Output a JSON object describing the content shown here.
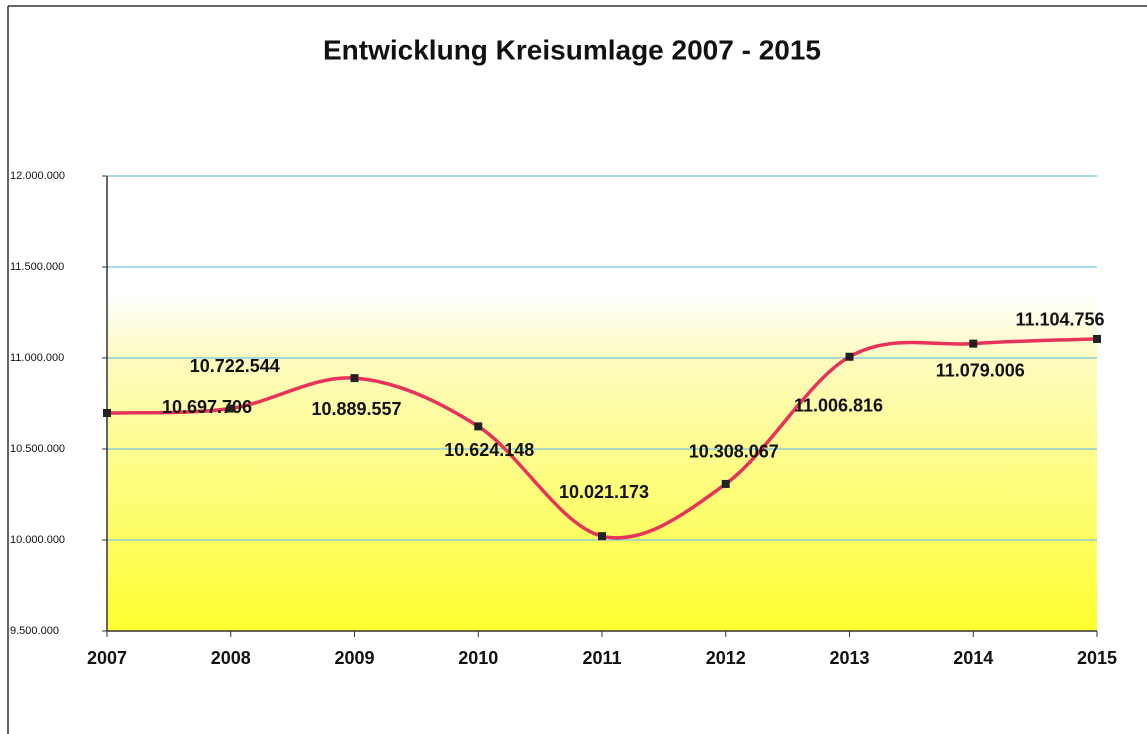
{
  "chart_data": {
    "type": "line",
    "title": "Entwicklung Kreisumlage 2007 - 2015",
    "x": [
      2007,
      2008,
      2009,
      2010,
      2011,
      2012,
      2013,
      2014,
      2015
    ],
    "xlim": [
      2007,
      2015
    ],
    "series": [
      {
        "name": "Kreisumlage",
        "color": "#e8325a",
        "values": [
          10697706,
          10722544,
          10889557,
          10624148,
          10021173,
          10308067,
          11006816,
          11079006,
          11104756
        ],
        "value_labels": [
          "10.697.706",
          "10.722.544",
          "10.889.557",
          "10.624.148",
          "10.021.173",
          "10.308.067",
          "11.006.816",
          "11.079.006",
          "11.104.756"
        ]
      }
    ],
    "ylim": [
      9500000,
      12000000
    ],
    "yticks": [
      {
        "value": 9500000,
        "label": "9.500.000"
      },
      {
        "value": 10000000,
        "label": "10.000.000"
      },
      {
        "value": 10500000,
        "label": "10.500.000"
      },
      {
        "value": 11000000,
        "label": "11.000.000"
      },
      {
        "value": 11500000,
        "label": "11.500.000"
      },
      {
        "value": 12000000,
        "label": "12.000.000"
      }
    ],
    "grid": true
  }
}
